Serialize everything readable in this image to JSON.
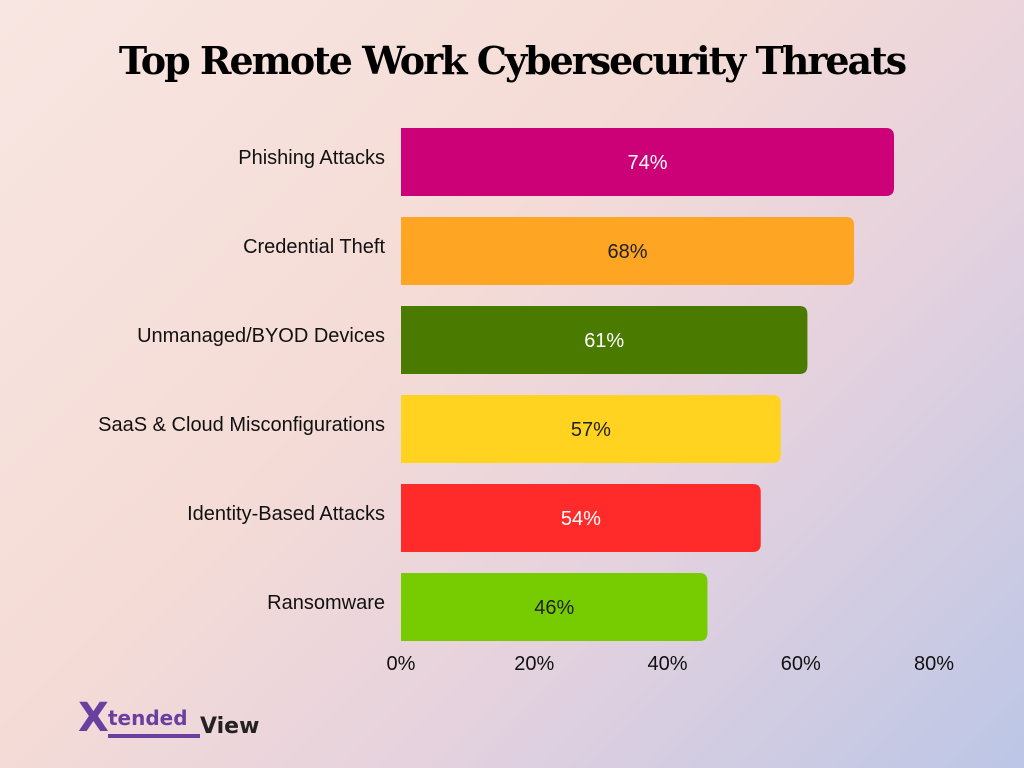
{
  "header": {
    "title": "Top Remote Work Cybersecurity Threats"
  },
  "chart_data": {
    "type": "bar",
    "orientation": "horizontal",
    "title": "Top Remote Work Cybersecurity Threats",
    "categories": [
      "Phishing Attacks",
      "Credential Theft",
      "Unmanaged/BYOD Devices",
      "SaaS & Cloud Misconfigurations",
      "Identity-Based Attacks",
      "Ransomware"
    ],
    "values": [
      74,
      68,
      61,
      57,
      54,
      46
    ],
    "value_labels": [
      "74%",
      "68%",
      "61%",
      "57%",
      "54%",
      "46%"
    ],
    "colors": [
      "#cc0077",
      "#ffa524",
      "#4a7a00",
      "#ffd320",
      "#ff2b2b",
      "#76cc00"
    ],
    "label_colors": [
      "#ffffff",
      "#222222",
      "#ffffff",
      "#222222",
      "#ffffff",
      "#222222"
    ],
    "xlim": [
      0,
      80
    ],
    "x_ticks": [
      0,
      20,
      40,
      60,
      80
    ],
    "x_tick_labels": [
      "0%",
      "20%",
      "40%",
      "60%",
      "80%"
    ],
    "xlabel": "",
    "ylabel": "",
    "grid": false,
    "legend": "none"
  },
  "logo": {
    "mark": "X",
    "part1": "tended",
    "part2": "View"
  }
}
